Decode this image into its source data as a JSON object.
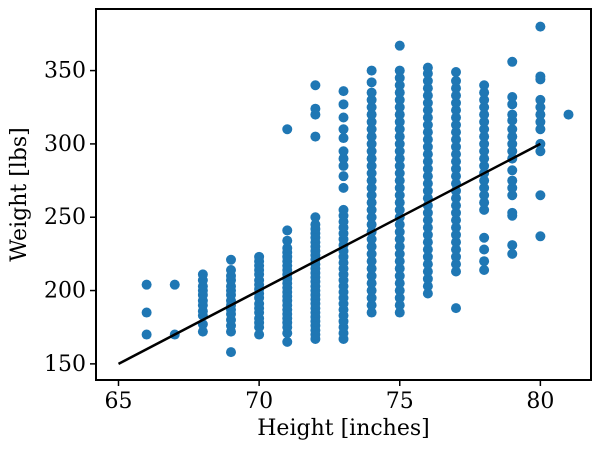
{
  "chart_data": {
    "type": "scatter",
    "title": "",
    "xlabel": "Height [inches]",
    "ylabel": "Weight [lbs]",
    "xlim": [
      64.2,
      81.8
    ],
    "ylim": [
      139,
      392
    ],
    "xticks": [
      65,
      70,
      75,
      80
    ],
    "yticks": [
      150,
      200,
      250,
      300,
      350
    ],
    "grid": false,
    "legend": "none",
    "colors": {
      "points": "#1f77b4",
      "fit_line": "#000000",
      "axes": "#000000",
      "background": "#ffffff"
    },
    "fit_line": {
      "x": [
        65,
        80
      ],
      "y": [
        150,
        300
      ]
    },
    "series": [
      {
        "values": [
          [
            66,
            170
          ],
          [
            66,
            185
          ],
          [
            66,
            204
          ],
          [
            67,
            170
          ],
          [
            67,
            204
          ],
          [
            68,
            172
          ],
          [
            68,
            177
          ],
          [
            68,
            183
          ],
          [
            68,
            186
          ],
          [
            68,
            190
          ],
          [
            68,
            193
          ],
          [
            68,
            197
          ],
          [
            68,
            200
          ],
          [
            68,
            203
          ],
          [
            68,
            207
          ],
          [
            68,
            211
          ],
          [
            69,
            158
          ],
          [
            69,
            172
          ],
          [
            69,
            176
          ],
          [
            69,
            180
          ],
          [
            69,
            184
          ],
          [
            69,
            187
          ],
          [
            69,
            190
          ],
          [
            69,
            193
          ],
          [
            69,
            197
          ],
          [
            69,
            200
          ],
          [
            69,
            203
          ],
          [
            69,
            207
          ],
          [
            69,
            210
          ],
          [
            69,
            214
          ],
          [
            69,
            221
          ],
          [
            70,
            170
          ],
          [
            70,
            175
          ],
          [
            70,
            178
          ],
          [
            70,
            181
          ],
          [
            70,
            185
          ],
          [
            70,
            188
          ],
          [
            70,
            191
          ],
          [
            70,
            195
          ],
          [
            70,
            198
          ],
          [
            70,
            201
          ],
          [
            70,
            204
          ],
          [
            70,
            207
          ],
          [
            70,
            211
          ],
          [
            70,
            214
          ],
          [
            70,
            217
          ],
          [
            70,
            220
          ],
          [
            70,
            223
          ],
          [
            71,
            165
          ],
          [
            71,
            171
          ],
          [
            71,
            175
          ],
          [
            71,
            178
          ],
          [
            71,
            181
          ],
          [
            71,
            184
          ],
          [
            71,
            187
          ],
          [
            71,
            190
          ],
          [
            71,
            193
          ],
          [
            71,
            196
          ],
          [
            71,
            199
          ],
          [
            71,
            202
          ],
          [
            71,
            205
          ],
          [
            71,
            208
          ],
          [
            71,
            211
          ],
          [
            71,
            214
          ],
          [
            71,
            217
          ],
          [
            71,
            220
          ],
          [
            71,
            223
          ],
          [
            71,
            226
          ],
          [
            71,
            229
          ],
          [
            71,
            234
          ],
          [
            71,
            241
          ],
          [
            71,
            310
          ],
          [
            72,
            167
          ],
          [
            72,
            170
          ],
          [
            72,
            173
          ],
          [
            72,
            176
          ],
          [
            72,
            179
          ],
          [
            72,
            182
          ],
          [
            72,
            185
          ],
          [
            72,
            188
          ],
          [
            72,
            191
          ],
          [
            72,
            194
          ],
          [
            72,
            197
          ],
          [
            72,
            200
          ],
          [
            72,
            203
          ],
          [
            72,
            206
          ],
          [
            72,
            209
          ],
          [
            72,
            212
          ],
          [
            72,
            215
          ],
          [
            72,
            218
          ],
          [
            72,
            221
          ],
          [
            72,
            224
          ],
          [
            72,
            227
          ],
          [
            72,
            230
          ],
          [
            72,
            233
          ],
          [
            72,
            236
          ],
          [
            72,
            239
          ],
          [
            72,
            242
          ],
          [
            72,
            245
          ],
          [
            72,
            250
          ],
          [
            72,
            305
          ],
          [
            72,
            320
          ],
          [
            72,
            324
          ],
          [
            72,
            340
          ],
          [
            73,
            167
          ],
          [
            73,
            171
          ],
          [
            73,
            175
          ],
          [
            73,
            179
          ],
          [
            73,
            183
          ],
          [
            73,
            187
          ],
          [
            73,
            191
          ],
          [
            73,
            195
          ],
          [
            73,
            199
          ],
          [
            73,
            203
          ],
          [
            73,
            207
          ],
          [
            73,
            211
          ],
          [
            73,
            215
          ],
          [
            73,
            219
          ],
          [
            73,
            223
          ],
          [
            73,
            227
          ],
          [
            73,
            231
          ],
          [
            73,
            235
          ],
          [
            73,
            239
          ],
          [
            73,
            243
          ],
          [
            73,
            247
          ],
          [
            73,
            251
          ],
          [
            73,
            255
          ],
          [
            73,
            270
          ],
          [
            73,
            278
          ],
          [
            73,
            285
          ],
          [
            73,
            290
          ],
          [
            73,
            295
          ],
          [
            73,
            304
          ],
          [
            73,
            310
          ],
          [
            73,
            318
          ],
          [
            73,
            327
          ],
          [
            73,
            336
          ],
          [
            74,
            185
          ],
          [
            74,
            190
          ],
          [
            74,
            195
          ],
          [
            74,
            200
          ],
          [
            74,
            205
          ],
          [
            74,
            210
          ],
          [
            74,
            215
          ],
          [
            74,
            220
          ],
          [
            74,
            225
          ],
          [
            74,
            230
          ],
          [
            74,
            235
          ],
          [
            74,
            240
          ],
          [
            74,
            245
          ],
          [
            74,
            250
          ],
          [
            74,
            255
          ],
          [
            74,
            260
          ],
          [
            74,
            265
          ],
          [
            74,
            270
          ],
          [
            74,
            275
          ],
          [
            74,
            280
          ],
          [
            74,
            285
          ],
          [
            74,
            290
          ],
          [
            74,
            295
          ],
          [
            74,
            300
          ],
          [
            74,
            305
          ],
          [
            74,
            310
          ],
          [
            74,
            315
          ],
          [
            74,
            320
          ],
          [
            74,
            325
          ],
          [
            74,
            330
          ],
          [
            74,
            335
          ],
          [
            74,
            342
          ],
          [
            74,
            350
          ],
          [
            75,
            185
          ],
          [
            75,
            190
          ],
          [
            75,
            195
          ],
          [
            75,
            200
          ],
          [
            75,
            205
          ],
          [
            75,
            210
          ],
          [
            75,
            215
          ],
          [
            75,
            220
          ],
          [
            75,
            225
          ],
          [
            75,
            230
          ],
          [
            75,
            235
          ],
          [
            75,
            240
          ],
          [
            75,
            245
          ],
          [
            75,
            250
          ],
          [
            75,
            255
          ],
          [
            75,
            260
          ],
          [
            75,
            265
          ],
          [
            75,
            270
          ],
          [
            75,
            275
          ],
          [
            75,
            280
          ],
          [
            75,
            285
          ],
          [
            75,
            290
          ],
          [
            75,
            295
          ],
          [
            75,
            300
          ],
          [
            75,
            305
          ],
          [
            75,
            310
          ],
          [
            75,
            315
          ],
          [
            75,
            320
          ],
          [
            75,
            325
          ],
          [
            75,
            330
          ],
          [
            75,
            335
          ],
          [
            75,
            340
          ],
          [
            75,
            345
          ],
          [
            75,
            350
          ],
          [
            75,
            367
          ],
          [
            76,
            198
          ],
          [
            76,
            203
          ],
          [
            76,
            208
          ],
          [
            76,
            213
          ],
          [
            76,
            218
          ],
          [
            76,
            223
          ],
          [
            76,
            228
          ],
          [
            76,
            233
          ],
          [
            76,
            238
          ],
          [
            76,
            243
          ],
          [
            76,
            248
          ],
          [
            76,
            253
          ],
          [
            76,
            258
          ],
          [
            76,
            263
          ],
          [
            76,
            268
          ],
          [
            76,
            273
          ],
          [
            76,
            278
          ],
          [
            76,
            283
          ],
          [
            76,
            288
          ],
          [
            76,
            293
          ],
          [
            76,
            298
          ],
          [
            76,
            303
          ],
          [
            76,
            308
          ],
          [
            76,
            313
          ],
          [
            76,
            318
          ],
          [
            76,
            323
          ],
          [
            76,
            328
          ],
          [
            76,
            333
          ],
          [
            76,
            338
          ],
          [
            76,
            343
          ],
          [
            76,
            348
          ],
          [
            76,
            352
          ],
          [
            77,
            188
          ],
          [
            77,
            213
          ],
          [
            77,
            218
          ],
          [
            77,
            223
          ],
          [
            77,
            228
          ],
          [
            77,
            233
          ],
          [
            77,
            238
          ],
          [
            77,
            243
          ],
          [
            77,
            248
          ],
          [
            77,
            253
          ],
          [
            77,
            258
          ],
          [
            77,
            263
          ],
          [
            77,
            268
          ],
          [
            77,
            273
          ],
          [
            77,
            278
          ],
          [
            77,
            283
          ],
          [
            77,
            288
          ],
          [
            77,
            293
          ],
          [
            77,
            298
          ],
          [
            77,
            303
          ],
          [
            77,
            308
          ],
          [
            77,
            313
          ],
          [
            77,
            318
          ],
          [
            77,
            323
          ],
          [
            77,
            328
          ],
          [
            77,
            333
          ],
          [
            77,
            338
          ],
          [
            77,
            343
          ],
          [
            77,
            349
          ],
          [
            78,
            214
          ],
          [
            78,
            220
          ],
          [
            78,
            228
          ],
          [
            78,
            236
          ],
          [
            78,
            255
          ],
          [
            78,
            260
          ],
          [
            78,
            265
          ],
          [
            78,
            270
          ],
          [
            78,
            275
          ],
          [
            78,
            280
          ],
          [
            78,
            285
          ],
          [
            78,
            290
          ],
          [
            78,
            295
          ],
          [
            78,
            300
          ],
          [
            78,
            305
          ],
          [
            78,
            310
          ],
          [
            78,
            315
          ],
          [
            78,
            320
          ],
          [
            78,
            325
          ],
          [
            78,
            330
          ],
          [
            78,
            335
          ],
          [
            78,
            340
          ],
          [
            79,
            225
          ],
          [
            79,
            231
          ],
          [
            79,
            251
          ],
          [
            79,
            253
          ],
          [
            79,
            265
          ],
          [
            79,
            270
          ],
          [
            79,
            275
          ],
          [
            79,
            282
          ],
          [
            79,
            290
          ],
          [
            79,
            295
          ],
          [
            79,
            300
          ],
          [
            79,
            305
          ],
          [
            79,
            310
          ],
          [
            79,
            316
          ],
          [
            79,
            320
          ],
          [
            79,
            327
          ],
          [
            79,
            332
          ],
          [
            79,
            356
          ],
          [
            80,
            237
          ],
          [
            80,
            265
          ],
          [
            80,
            295
          ],
          [
            80,
            300
          ],
          [
            80,
            310
          ],
          [
            80,
            315
          ],
          [
            80,
            320
          ],
          [
            80,
            325
          ],
          [
            80,
            330
          ],
          [
            80,
            344
          ],
          [
            80,
            346
          ],
          [
            80,
            380
          ],
          [
            81,
            320
          ]
        ]
      }
    ]
  }
}
